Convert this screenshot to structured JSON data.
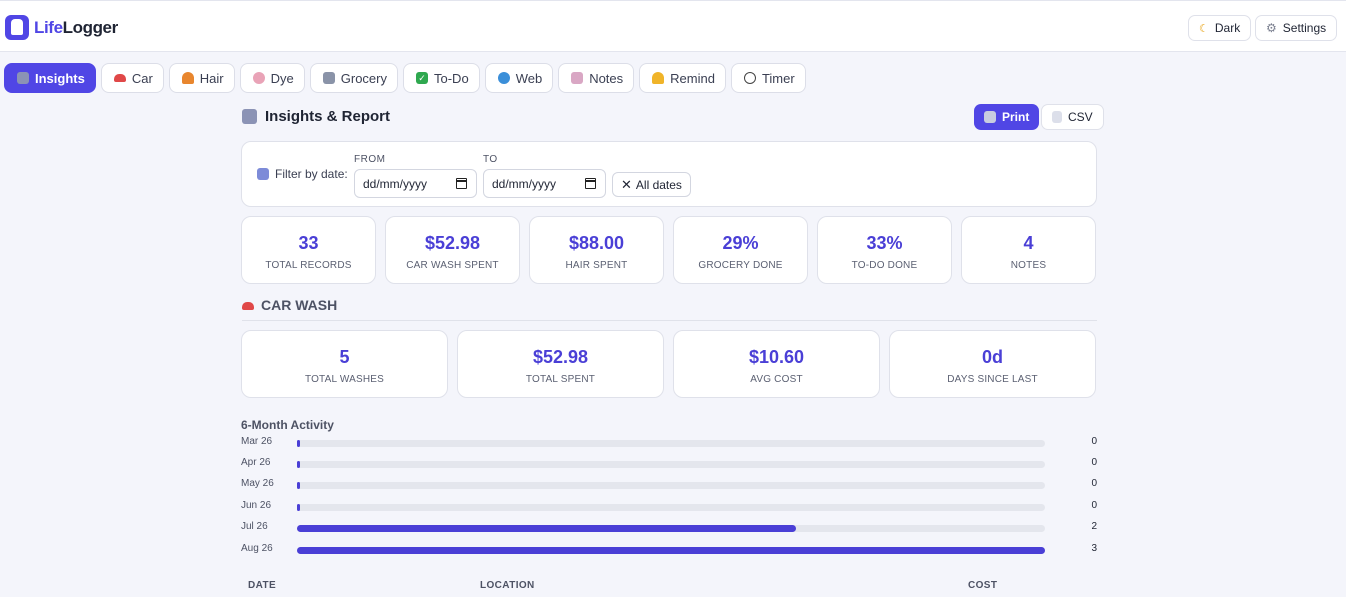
{
  "app": {
    "logo_a": "Life",
    "logo_b": "Logger",
    "dark_label": "Dark",
    "settings_label": "Settings"
  },
  "tabs": [
    {
      "label": "Insights",
      "icon": "chart-icon",
      "active": true
    },
    {
      "label": "Car",
      "icon": "car-icon"
    },
    {
      "label": "Hair",
      "icon": "haircut-icon"
    },
    {
      "label": "Dye",
      "icon": "palette-icon"
    },
    {
      "label": "Grocery",
      "icon": "cart-icon"
    },
    {
      "label": "To-Do",
      "icon": "check-icon"
    },
    {
      "label": "Web",
      "icon": "globe-icon"
    },
    {
      "label": "Notes",
      "icon": "memo-icon"
    },
    {
      "label": "Remind",
      "icon": "bell-icon"
    },
    {
      "label": "Timer",
      "icon": "stopwatch-icon"
    }
  ],
  "report": {
    "title": "Insights & Report",
    "print_label": "Print",
    "csv_label": "CSV"
  },
  "filter": {
    "label": "Filter by date:",
    "from_label": "FROM",
    "to_label": "TO",
    "from_value": "dd/mm/yyyy",
    "to_value": "dd/mm/yyyy",
    "all_dates_label": "All dates"
  },
  "summary": [
    {
      "value": "33",
      "label": "Total Records"
    },
    {
      "value": "$52.98",
      "label": "Car Wash Spent"
    },
    {
      "value": "$88.00",
      "label": "Hair Spent"
    },
    {
      "value": "29%",
      "label": "Grocery Done"
    },
    {
      "value": "33%",
      "label": "To-Do Done"
    },
    {
      "value": "4",
      "label": "Notes"
    }
  ],
  "car_wash": {
    "title": "CAR WASH",
    "stats": [
      {
        "value": "5",
        "label": "Total Washes"
      },
      {
        "value": "$52.98",
        "label": "Total Spent"
      },
      {
        "value": "$10.60",
        "label": "Avg Cost"
      },
      {
        "value": "0d",
        "label": "Days Since Last"
      }
    ]
  },
  "activity": {
    "title": "6-Month Activity",
    "max": 3,
    "rows": [
      {
        "month": "Mar 26",
        "count": 0
      },
      {
        "month": "Apr 26",
        "count": 0
      },
      {
        "month": "May 26",
        "count": 0
      },
      {
        "month": "Jun 26",
        "count": 0
      },
      {
        "month": "Jul 26",
        "count": 2
      },
      {
        "month": "Aug 26",
        "count": 3
      }
    ]
  },
  "table": {
    "headers": [
      "DATE",
      "LOCATION",
      "COST"
    ]
  },
  "colors": {
    "accent": "#5046e5",
    "value": "#4a3fd6",
    "track": "#e4e6ed"
  }
}
